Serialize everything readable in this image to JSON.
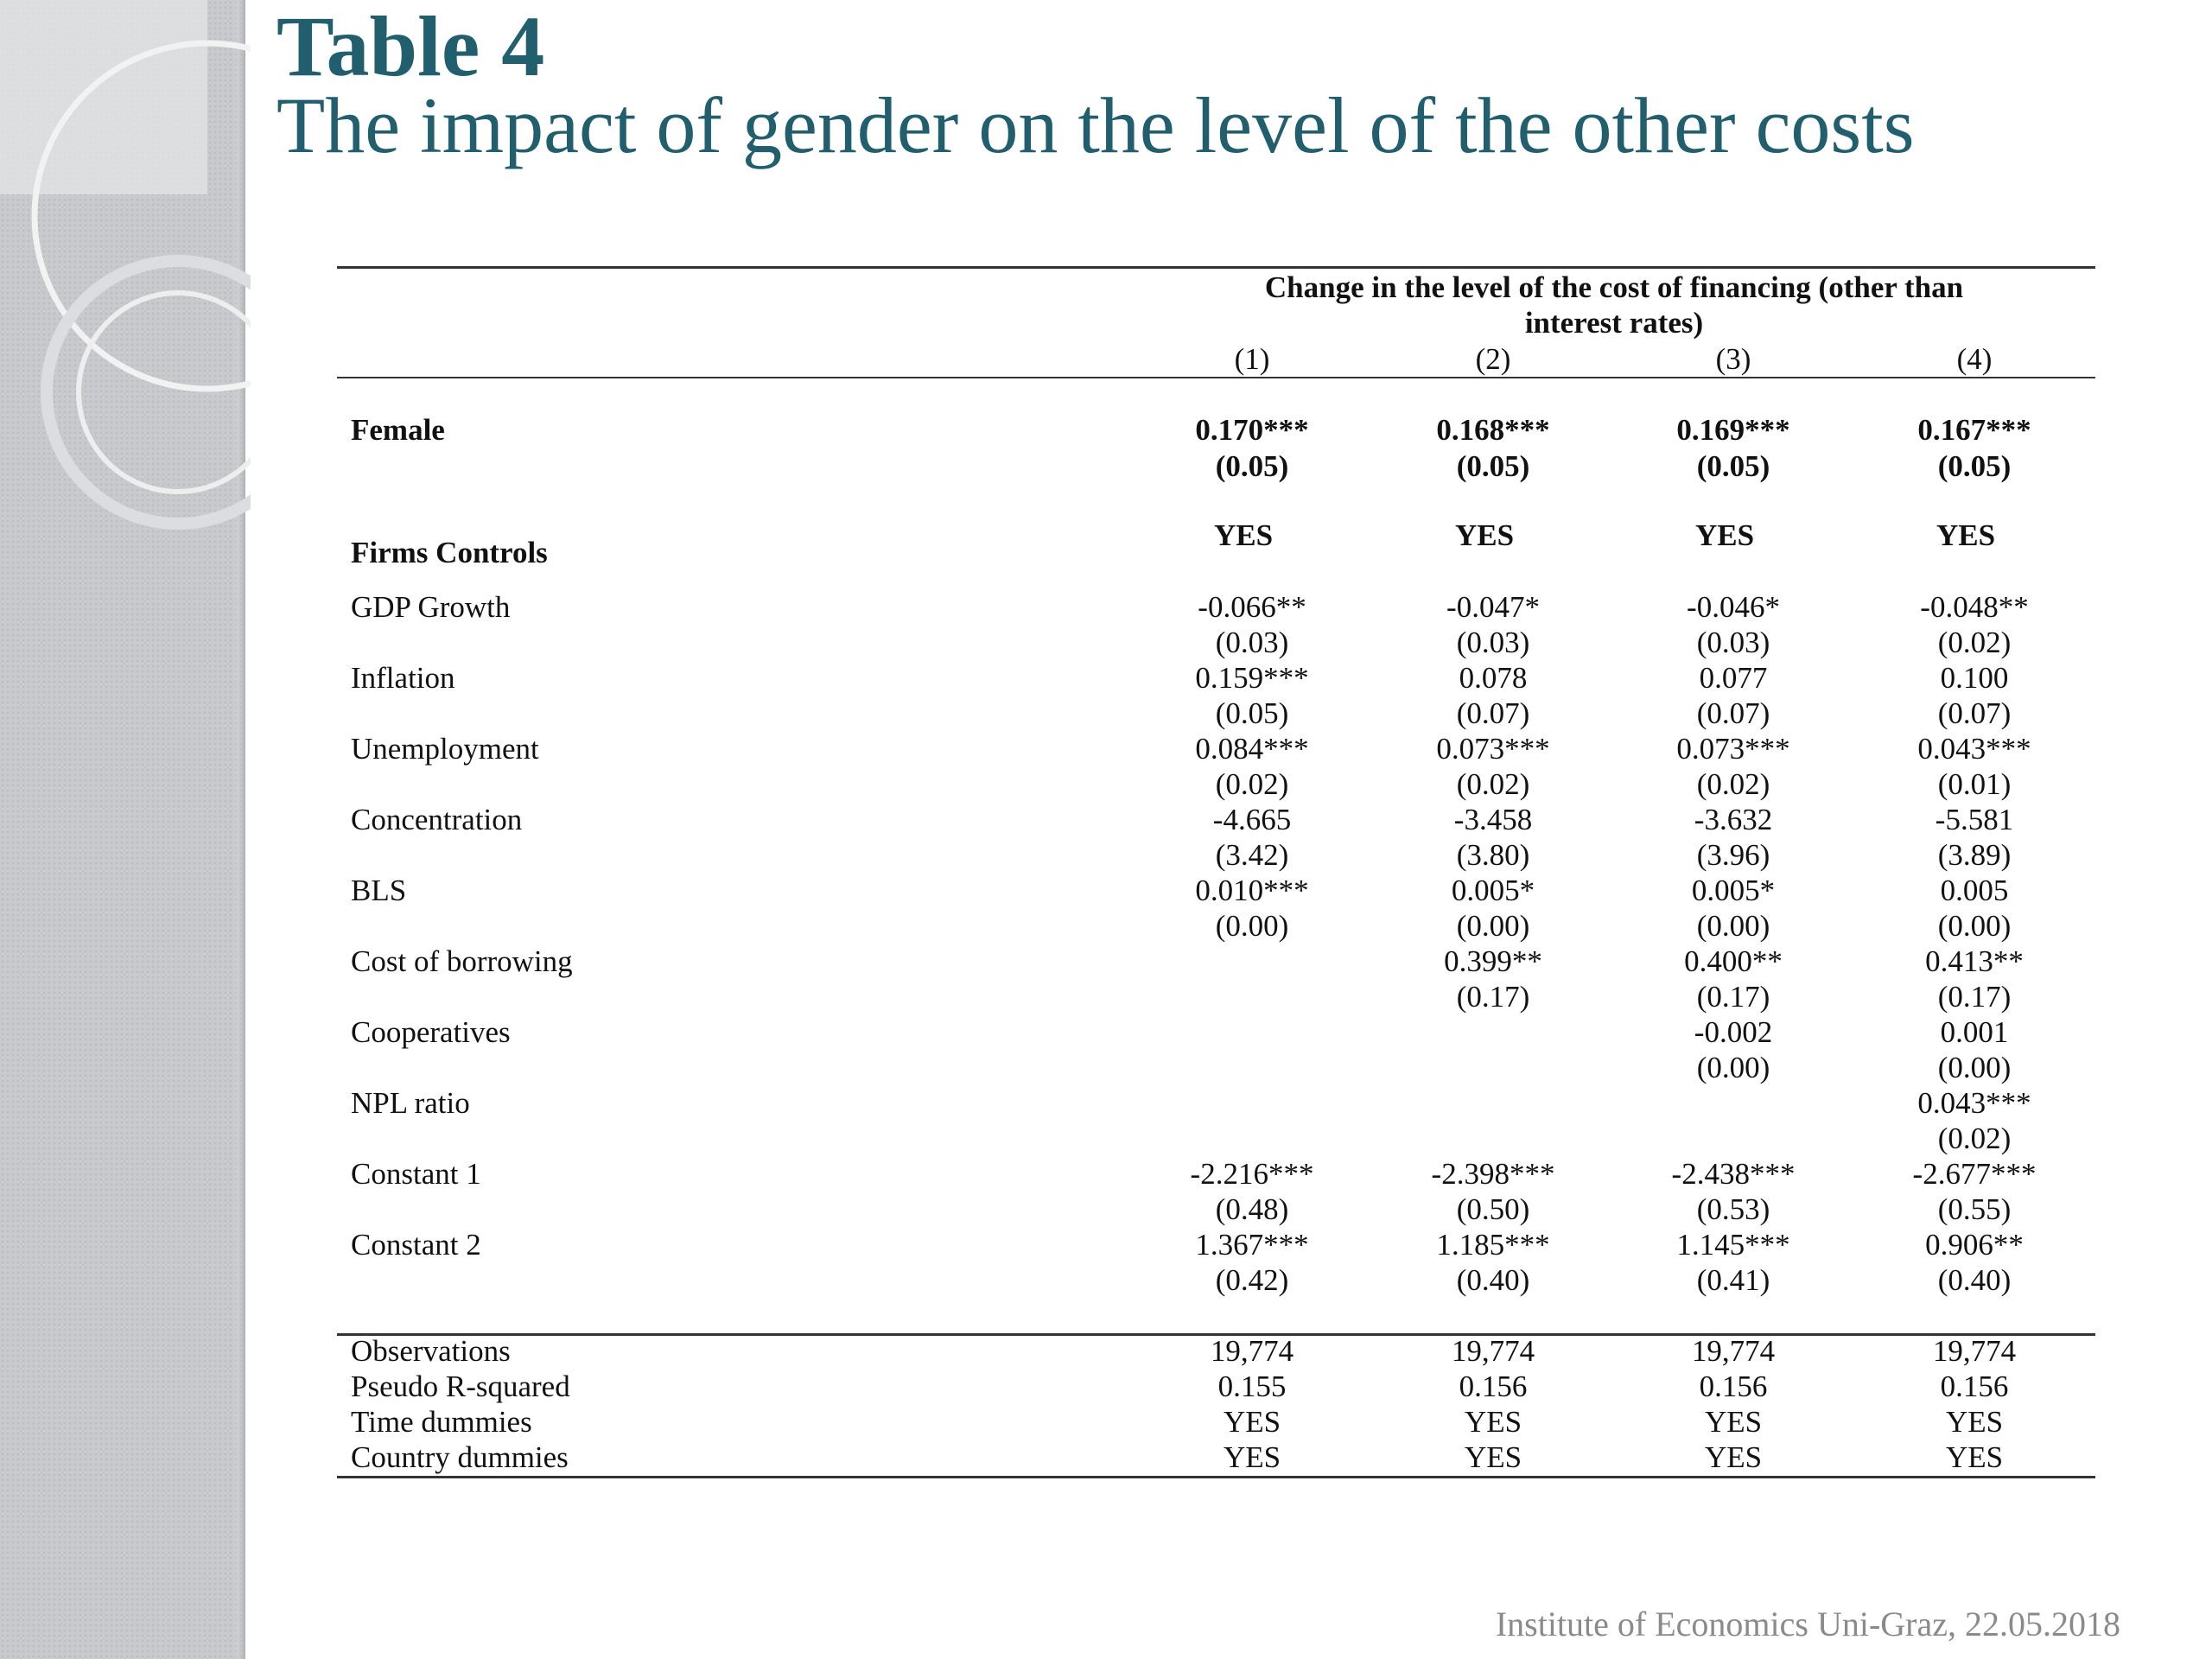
{
  "header": {
    "title": "Table 4",
    "subtitle": "The impact of gender on the level of the other costs"
  },
  "table": {
    "heading_lines": [
      "Change in the level of the cost of financing (other than",
      "interest rates)"
    ],
    "columns": [
      "(1)",
      "(2)",
      "(3)",
      "(4)"
    ],
    "female": {
      "label": "Female",
      "coef": [
        "0.170***",
        "0.168***",
        "0.169***",
        "0.167***"
      ],
      "se": [
        "(0.05)",
        "(0.05)",
        "(0.05)",
        "(0.05)"
      ]
    },
    "firms_controls": {
      "label": "Firms Controls",
      "values": [
        "YES",
        "YES",
        "YES",
        "YES"
      ]
    },
    "rows": [
      {
        "label": "GDP Growth",
        "coef": [
          "-0.066**",
          "-0.047*",
          "-0.046*",
          "-0.048**"
        ],
        "se": [
          "(0.03)",
          "(0.03)",
          "(0.03)",
          "(0.02)"
        ]
      },
      {
        "label": "Inflation",
        "coef": [
          "0.159***",
          "0.078",
          "0.077",
          "0.100"
        ],
        "se": [
          "(0.05)",
          "(0.07)",
          "(0.07)",
          "(0.07)"
        ]
      },
      {
        "label": "Unemployment",
        "coef": [
          "0.084***",
          "0.073***",
          "0.073***",
          "0.043***"
        ],
        "se": [
          "(0.02)",
          "(0.02)",
          "(0.02)",
          "(0.01)"
        ]
      },
      {
        "label": "Concentration",
        "coef": [
          "-4.665",
          "-3.458",
          "-3.632",
          "-5.581"
        ],
        "se": [
          "(3.42)",
          "(3.80)",
          "(3.96)",
          "(3.89)"
        ]
      },
      {
        "label": "BLS",
        "coef": [
          "0.010***",
          "0.005*",
          "0.005*",
          "0.005"
        ],
        "se": [
          "(0.00)",
          "(0.00)",
          "(0.00)",
          "(0.00)"
        ]
      },
      {
        "label": "Cost of borrowing",
        "coef": [
          null,
          "0.399**",
          "0.400**",
          "0.413**"
        ],
        "se": [
          null,
          "(0.17)",
          "(0.17)",
          "(0.17)"
        ]
      },
      {
        "label": "Cooperatives",
        "coef": [
          null,
          null,
          "-0.002",
          "0.001"
        ],
        "se": [
          null,
          null,
          "(0.00)",
          "(0.00)"
        ]
      },
      {
        "label": "NPL ratio",
        "coef": [
          null,
          null,
          null,
          "0.043***"
        ],
        "se": [
          null,
          null,
          null,
          "(0.02)"
        ]
      },
      {
        "label": "Constant 1",
        "coef": [
          "-2.216***",
          "-2.398***",
          "-2.438***",
          "-2.677***"
        ],
        "se": [
          "(0.48)",
          "(0.50)",
          "(0.53)",
          "(0.55)"
        ]
      },
      {
        "label": "Constant 2",
        "coef": [
          "1.367***",
          "1.185***",
          "1.145***",
          "0.906**"
        ],
        "se": [
          "(0.42)",
          "(0.40)",
          "(0.41)",
          "(0.40)"
        ]
      }
    ],
    "stats": [
      {
        "label": "Observations",
        "values": [
          "19,774",
          "19,774",
          "19,774",
          "19,774"
        ]
      },
      {
        "label": "Pseudo R-squared",
        "values": [
          "0.155",
          "0.156",
          "0.156",
          "0.156"
        ]
      },
      {
        "label": "Time dummies",
        "values": [
          "YES",
          "YES",
          "YES",
          "YES"
        ]
      },
      {
        "label": "Country dummies",
        "values": [
          "YES",
          "YES",
          "YES",
          "YES"
        ]
      }
    ]
  },
  "footer": "Institute of Economics Uni-Graz, 22.05.2018"
}
